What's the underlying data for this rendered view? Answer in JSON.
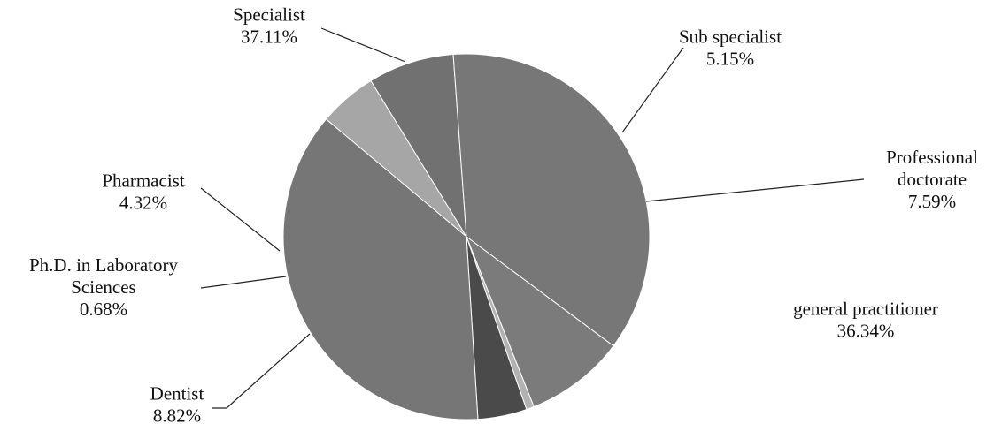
{
  "chart_data": {
    "type": "pie",
    "title": "",
    "legend": "none",
    "start_angle_deg": 310,
    "direction": "clockwise",
    "slices": [
      {
        "key": "sub_specialist",
        "name_lines": [
          "Sub specialist"
        ],
        "value": 5.15,
        "value_label": "5.15%",
        "color": "#a6a6a6"
      },
      {
        "key": "prof_doctorate",
        "name_lines": [
          "Professional",
          "doctorate"
        ],
        "value": 7.59,
        "value_label": "7.59%",
        "color": "#717171"
      },
      {
        "key": "general_prac",
        "name_lines": [
          "general practitioner"
        ],
        "value": 36.34,
        "value_label": "36.34%",
        "color": "#777777"
      },
      {
        "key": "dentist",
        "name_lines": [
          "Dentist"
        ],
        "value": 8.82,
        "value_label": "8.82%",
        "color": "#7b7b7b"
      },
      {
        "key": "phd_lab",
        "name_lines": [
          "Ph.D. in Laboratory",
          "Sciences"
        ],
        "value": 0.68,
        "value_label": "0.68%",
        "color": "#b2b2b2"
      },
      {
        "key": "pharmacist",
        "name_lines": [
          "Pharmacist"
        ],
        "value": 4.32,
        "value_label": "4.32%",
        "color": "#4a4a4a"
      },
      {
        "key": "specialist",
        "name_lines": [
          "Specialist"
        ],
        "value": 37.11,
        "value_label": "37.11%",
        "color": "#767676"
      }
    ]
  }
}
